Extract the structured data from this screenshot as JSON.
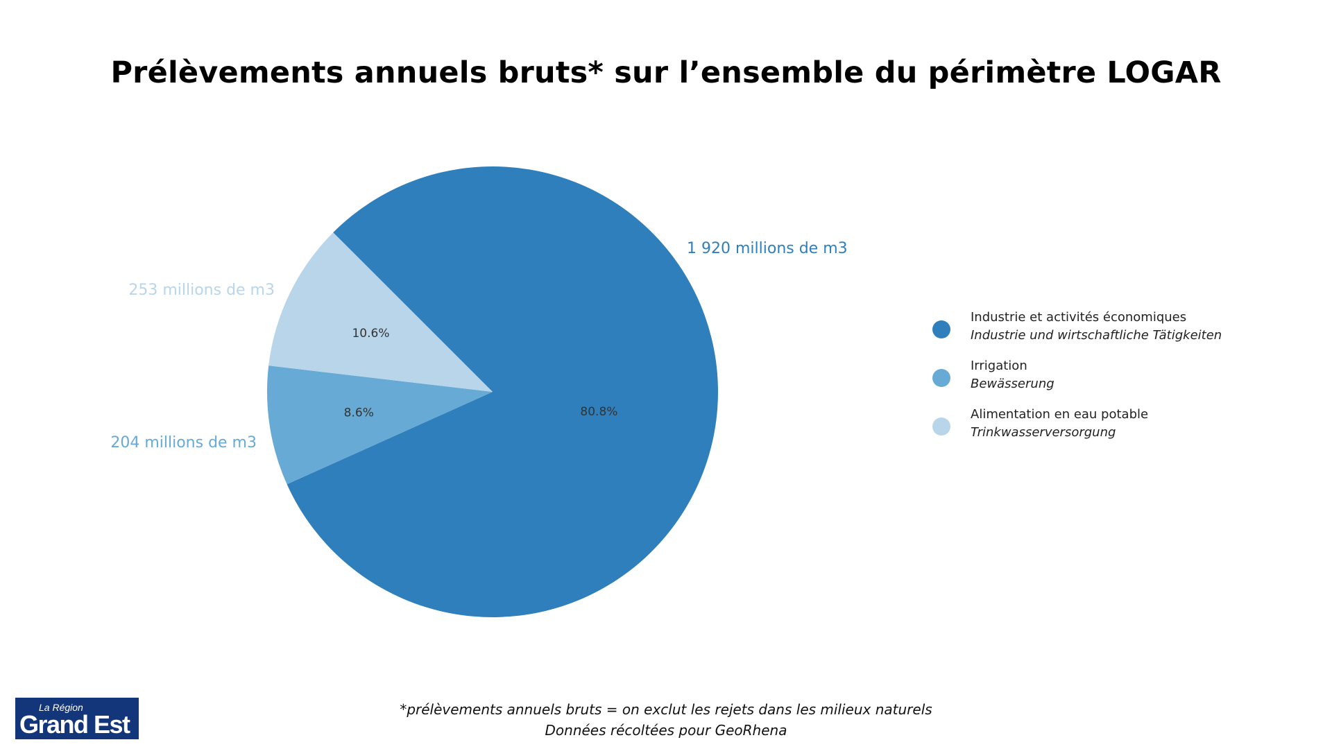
{
  "title": "Prélèvements annuels bruts* sur l’ensemble du périmètre LOGAR",
  "chart_data": {
    "type": "pie",
    "title": "Prélèvements annuels bruts* sur l’ensemble du périmètre LOGAR",
    "slices": [
      {
        "label": "Industrie et activités économiques",
        "label_de": "Industrie und wirtschaftliche Tätigkeiten",
        "value": 1920,
        "percent": 80.8,
        "percent_label": "80.8%",
        "value_label": "1 920 millions de m3",
        "color": "#2f7fbc"
      },
      {
        "label": "Irrigation",
        "label_de": "Bewässerung",
        "value": 204,
        "percent": 8.6,
        "percent_label": "8.6%",
        "value_label": "204 millions de m3",
        "color": "#67aad5"
      },
      {
        "label": "Alimentation en eau potable",
        "label_de": "Trinkwasserversorgung",
        "value": 253,
        "percent": 10.6,
        "percent_label": "10.6%",
        "value_label": "253 millions de m3",
        "color": "#b8d5ea"
      }
    ],
    "legend_position": "right"
  },
  "footnote": {
    "line1": "*prélèvements annuels bruts = on exclut les rejets dans les milieux naturels",
    "line2": "Données récoltées pour GeoRhena"
  },
  "logo": {
    "small": "La Région",
    "big": "Grand Est"
  }
}
